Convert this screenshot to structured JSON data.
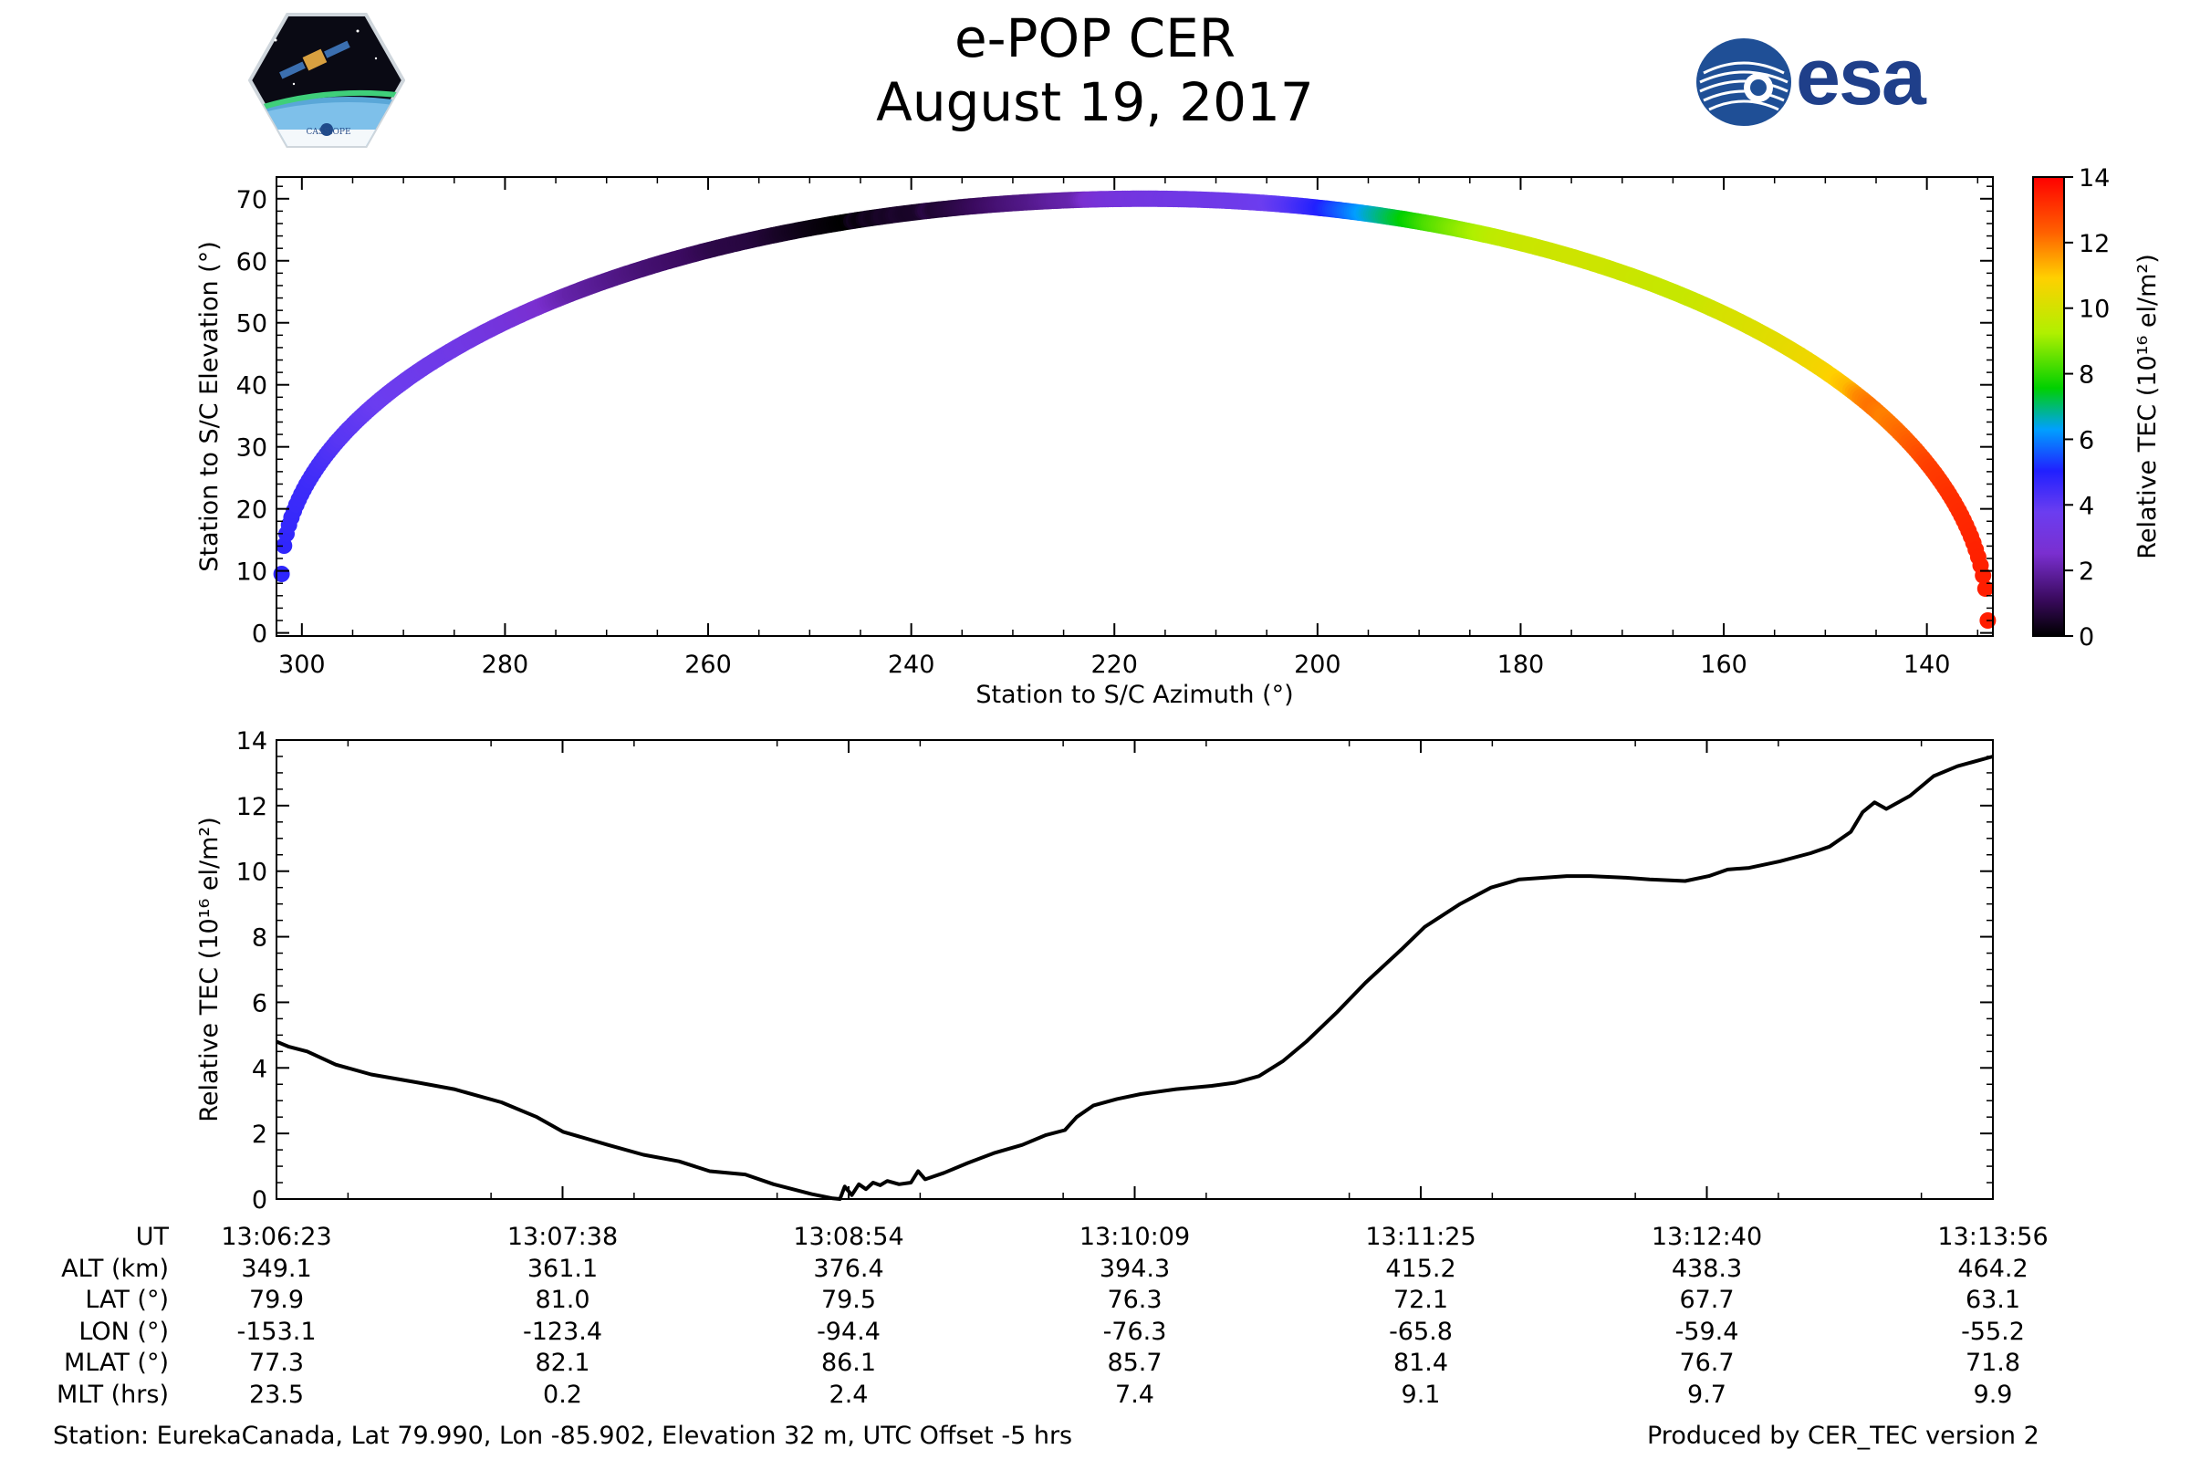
{
  "title": "e-POP CER",
  "date": "August 19, 2017",
  "logos": {
    "left": "CASSIOPE",
    "right": "esa"
  },
  "colors": {
    "line": "#000000",
    "background": "#ffffff"
  },
  "chart_data": [
    {
      "type": "scatter",
      "name": "elevation-vs-azimuth",
      "xlabel": "Station to S/C Azimuth (°)",
      "ylabel": "Station to S/C Elevation (°)",
      "xlim": [
        302.5,
        133.5
      ],
      "ylim": [
        -0.5,
        73.5
      ],
      "x_ticks": [
        300,
        280,
        260,
        240,
        220,
        200,
        180,
        160,
        140
      ],
      "y_ticks": [
        0,
        10,
        20,
        30,
        40,
        50,
        60,
        70
      ],
      "grid": false,
      "colorbar": {
        "label": "Relative TEC (10¹⁶ el/m²)",
        "range": [
          0,
          14
        ],
        "ticks": [
          0,
          2,
          4,
          6,
          8,
          10,
          12,
          14
        ],
        "stops": [
          "#000000",
          "#3a0a5e",
          "#7a2fd0",
          "#6b3df0",
          "#2020ff",
          "#00a0ff",
          "#00d000",
          "#b0f000",
          "#ffd000",
          "#ff6000",
          "#ff0000"
        ]
      },
      "track": {
        "az_start": 302,
        "az_peak": 217,
        "az_end": 134,
        "el_start": 9.5,
        "el_peak": 70,
        "el_end": 2
      }
    },
    {
      "type": "line",
      "name": "relative-tec",
      "ylabel": "Relative TEC (10¹⁶ el/m²)",
      "ylim": [
        0,
        14
      ],
      "y_ticks": [
        0,
        2,
        4,
        6,
        8,
        10,
        12,
        14
      ],
      "grid": false,
      "series": [
        {
          "name": "Relative TEC",
          "t_start_sec": 47183,
          "t_end_sec": 47636,
          "points": [
            [
              0,
              4.8
            ],
            [
              5,
              4.65
            ],
            [
              13,
              4.5
            ],
            [
              25,
              4.1
            ],
            [
              40,
              3.8
            ],
            [
              60,
              3.55
            ],
            [
              75,
              3.35
            ],
            [
              85,
              3.15
            ],
            [
              95,
              2.95
            ],
            [
              110,
              2.5
            ],
            [
              121,
              2.05
            ],
            [
              140,
              1.65
            ],
            [
              155,
              1.35
            ],
            [
              170,
              1.15
            ],
            [
              183,
              0.85
            ],
            [
              198,
              0.75
            ],
            [
              210,
              0.45
            ],
            [
              226,
              0.15
            ],
            [
              235,
              0.02
            ],
            [
              238,
              0.0
            ],
            [
              240,
              0.38
            ],
            [
              243,
              0.12
            ],
            [
              246,
              0.45
            ],
            [
              249,
              0.3
            ],
            [
              252,
              0.5
            ],
            [
              255,
              0.42
            ],
            [
              258,
              0.55
            ],
            [
              263,
              0.45
            ],
            [
              268,
              0.5
            ],
            [
              271,
              0.85
            ],
            [
              274,
              0.6
            ],
            [
              282,
              0.8
            ],
            [
              292,
              1.1
            ],
            [
              303,
              1.4
            ],
            [
              315,
              1.65
            ],
            [
              325,
              1.95
            ],
            [
              333,
              2.1
            ],
            [
              338,
              2.5
            ],
            [
              345,
              2.85
            ],
            [
              355,
              3.05
            ],
            [
              365,
              3.2
            ],
            [
              380,
              3.35
            ],
            [
              395,
              3.45
            ],
            [
              405,
              3.55
            ],
            [
              415,
              3.75
            ],
            [
              425,
              4.2
            ],
            [
              435,
              4.8
            ],
            [
              448,
              5.7
            ],
            [
              460,
              6.6
            ],
            [
              475,
              7.6
            ],
            [
              485,
              8.3
            ],
            [
              500,
              9.0
            ],
            [
              513,
              9.5
            ],
            [
              525,
              9.75
            ],
            [
              545,
              9.85
            ],
            [
              555,
              9.85
            ],
            [
              570,
              9.8
            ],
            [
              580,
              9.75
            ],
            [
              595,
              9.7
            ],
            [
              605,
              9.85
            ],
            [
              613,
              10.05
            ],
            [
              622,
              10.1
            ],
            [
              635,
              10.3
            ],
            [
              648,
              10.55
            ],
            [
              656,
              10.75
            ],
            [
              665,
              11.2
            ],
            [
              670,
              11.8
            ],
            [
              675,
              12.1
            ],
            [
              680,
              11.9
            ],
            [
              690,
              12.3
            ],
            [
              700,
              12.9
            ],
            [
              710,
              13.2
            ],
            [
              725,
              13.5
            ]
          ]
        }
      ]
    }
  ],
  "table": {
    "row_labels": [
      "UT",
      "ALT (km)",
      "LAT (°)",
      "LON (°)",
      "MLAT (°)",
      "MLT (hrs)"
    ],
    "columns": [
      [
        "13:06:23",
        "349.1",
        "79.9",
        "-153.1",
        "77.3",
        "23.5"
      ],
      [
        "13:07:38",
        "361.1",
        "81.0",
        "-123.4",
        "82.1",
        "0.2"
      ],
      [
        "13:08:54",
        "376.4",
        "79.5",
        "-94.4",
        "86.1",
        "2.4"
      ],
      [
        "13:10:09",
        "394.3",
        "76.3",
        "-76.3",
        "85.7",
        "7.4"
      ],
      [
        "13:11:25",
        "415.2",
        "72.1",
        "-65.8",
        "81.4",
        "9.1"
      ],
      [
        "13:12:40",
        "438.3",
        "67.7",
        "-59.4",
        "76.7",
        "9.7"
      ],
      [
        "13:13:56",
        "464.2",
        "63.1",
        "-55.2",
        "71.8",
        "9.9"
      ]
    ]
  },
  "footer": {
    "station": "Station: EurekaCanada, Lat 79.990, Lon -85.902, Elevation 32 m, UTC Offset -5 hrs",
    "produced": "Produced by CER_TEC version 2"
  }
}
